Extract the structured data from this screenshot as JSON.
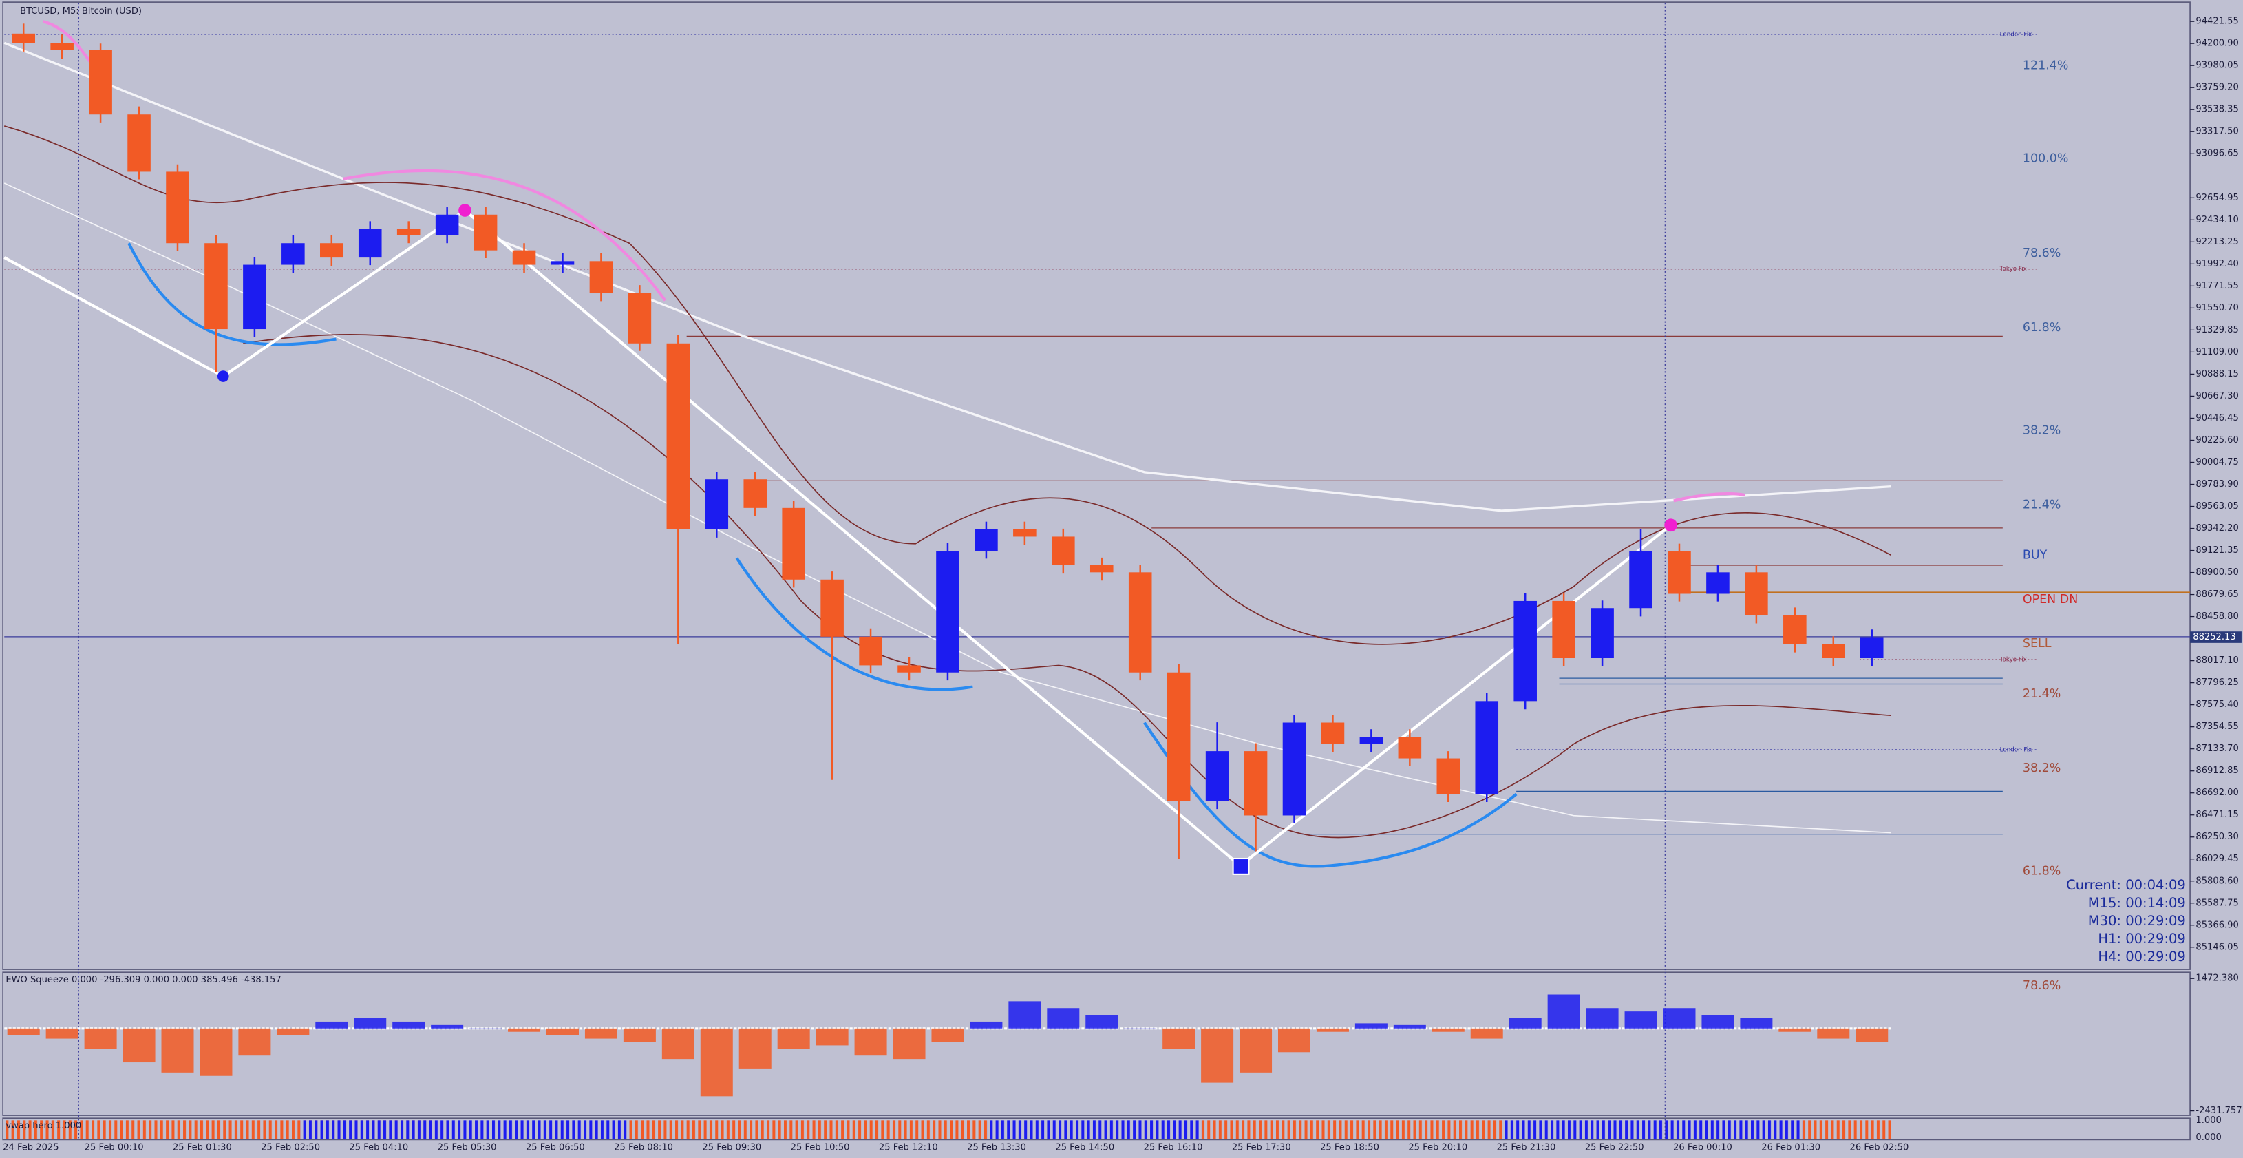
{
  "chart_data": {
    "type": "candlestick",
    "title": "BTCUSD, M5:  Bitcoin (USD)",
    "up_color": "#1c1cf0",
    "down_color": "#f25a25",
    "open": [
      94300,
      94206,
      94135,
      93490,
      92916,
      92200,
      91339,
      91984,
      92200,
      92056,
      92343,
      92280,
      92486,
      92128,
      91984,
      92020,
      91698,
      91196,
      89332,
      89834,
      89547,
      88830,
      88257,
      87970,
      87899,
      89117,
      89332,
      89260,
      88974,
      88902,
      87899,
      86609,
      87110,
      86466,
      87397,
      87182,
      87250,
      87038,
      86680,
      87612,
      88615,
      88042,
      88544,
      89117,
      88687,
      88902,
      88472,
      88185,
      88042
    ],
    "high": [
      94400,
      94290,
      94200,
      93570,
      92990,
      92280,
      92060,
      92280,
      92280,
      92420,
      92420,
      92560,
      92560,
      92200,
      92100,
      92100,
      91780,
      91280,
      89910,
      89910,
      89620,
      88910,
      88340,
      88050,
      89200,
      89410,
      89410,
      89340,
      89050,
      88980,
      87980,
      87400,
      87190,
      87470,
      87470,
      87330,
      87330,
      87110,
      87690,
      88690,
      88690,
      88620,
      89332,
      89190,
      88980,
      88980,
      88550,
      88260,
      88330
    ],
    "low": [
      94120,
      94050,
      93410,
      92840,
      92120,
      90909,
      91260,
      91900,
      91970,
      91980,
      92200,
      92200,
      92050,
      91900,
      91900,
      91620,
      91120,
      88185,
      89250,
      89470,
      88750,
      86823,
      87890,
      87820,
      87820,
      89040,
      89180,
      88890,
      88820,
      87820,
      86035,
      86530,
      86107,
      86390,
      87100,
      87100,
      86960,
      86600,
      86600,
      87530,
      87960,
      87960,
      88460,
      88610,
      88610,
      88390,
      88100,
      87960,
      87960
    ],
    "close": [
      94206,
      94135,
      93490,
      92916,
      92200,
      91339,
      91984,
      92200,
      92056,
      92343,
      92280,
      92486,
      92128,
      91984,
      92020,
      91698,
      91196,
      89332,
      89834,
      89547,
      88830,
      88257,
      87970,
      87899,
      89117,
      89332,
      89260,
      88974,
      88902,
      87899,
      86609,
      87110,
      86466,
      87397,
      87182,
      87250,
      87038,
      86680,
      87612,
      88615,
      88042,
      88544,
      89117,
      88687,
      88902,
      88472,
      88185,
      88042,
      88252
    ],
    "current_price": 88252.13,
    "ylim": [
      84945,
      94608
    ],
    "yticks": [
      94421.55,
      {
        "value": 94200.9,
        "label": "94200.90"
      },
      93980.05,
      {
        "value": 93759.2,
        "label": "93759.20"
      },
      93538.35,
      {
        "value": 93317.5,
        "label": "93317.50"
      },
      93096.65,
      92654.95,
      {
        "value": 92434.1,
        "label": "92434.10"
      },
      92213.25,
      {
        "value": 91992.4,
        "label": "91992.40"
      },
      91771.55,
      {
        "value": 91550.7,
        "label": "91550.70"
      },
      91329.85,
      {
        "value": 91109,
        "label": "91109.00"
      },
      90888.15,
      {
        "value": 90667.3,
        "label": "90667.30"
      },
      90446.45,
      {
        "value": 90225.6,
        "label": "90225.60"
      },
      90004.75,
      {
        "value": 89783.9,
        "label": "89783.90"
      },
      89563.05,
      {
        "value": 89342.2,
        "label": "89342.20"
      },
      89121.35,
      {
        "value": 88900.5,
        "label": "88900.50"
      },
      88679.65,
      {
        "value": 88458.8,
        "label": "88458.80"
      },
      {
        "value": 88017.1,
        "label": "88017.10"
      },
      87796.25,
      {
        "value": 87575.4,
        "label": "87575.40"
      },
      87354.55,
      {
        "value": 87133.7,
        "label": "87133.70"
      },
      86912.85,
      {
        "value": 86692,
        "label": "86692.00"
      },
      86471.15,
      {
        "value": 86250.3,
        "label": "86250.30"
      },
      86029.45,
      {
        "value": 85808.6,
        "label": "85808.60"
      },
      85587.75,
      {
        "value": 85366.9,
        "label": "85366.90"
      },
      85146.05
    ],
    "x_labels": [
      "24 Feb 2025",
      "25 Feb 00:10",
      "25 Feb 01:30",
      "25 Feb 02:50",
      "25 Feb 04:10",
      "25 Feb 05:30",
      "25 Feb 06:50",
      "25 Feb 08:10",
      "25 Feb 09:30",
      "25 Feb 10:50",
      "25 Feb 12:10",
      "25 Feb 13:30",
      "25 Feb 14:50",
      "25 Feb 16:10",
      "25 Feb 17:30",
      "25 Feb 18:50",
      "25 Feb 20:10",
      "25 Feb 21:30",
      "25 Feb 22:50",
      "26 Feb 00:10",
      "26 Feb 01:30",
      "26 Feb 02:50"
    ],
    "annotations": {
      "london_fix": "London Fix",
      "tokyo_fix": "Tokyo Fix"
    },
    "fib_labels": [
      "121.4%",
      "100.0%",
      "78.6%",
      "61.8%",
      "38.2%",
      "21.4%",
      "BUY",
      "OPEN DN",
      "SELL",
      "21.4%",
      "38.2%",
      "61.8%",
      "78.6%"
    ],
    "timers": [
      "Current: 00:04:09",
      "M15: 00:14:09",
      "M30: 00:29:09",
      "H1: 00:29:09",
      "H4: 00:29:09"
    ],
    "indicator": {
      "title": "EWO Squeeze 0.000 -296.309 0.000 0.000 385.496 -438.157",
      "ylim": [
        -2500,
        1550
      ],
      "yticks": [
        {
          "value": 1472.38,
          "label": "1472.380"
        },
        -2431.757
      ],
      "values": [
        -200,
        -300,
        -600,
        -1000,
        -1300,
        -1400,
        -800,
        -200,
        200,
        300,
        200,
        100,
        0,
        -100,
        -200,
        -300,
        -400,
        -900,
        -2000,
        -1200,
        -600,
        -500,
        -800,
        -900,
        -400,
        200,
        800,
        600,
        400,
        0,
        -600,
        -1600,
        -1300,
        -700,
        -100,
        150,
        100,
        -100,
        -300,
        300,
        1000,
        600,
        500,
        600,
        400,
        300,
        -100,
        -300,
        -400
      ]
    },
    "vwap": {
      "title": "vwap hero 1.000",
      "ylim": [
        0,
        1
      ],
      "yticks": [
        {
          "value": 1,
          "label": "1.000"
        },
        {
          "value": 0,
          "label": "0.000"
        }
      ]
    }
  }
}
